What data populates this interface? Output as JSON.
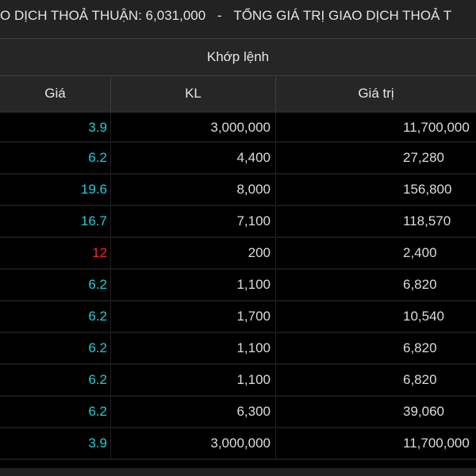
{
  "ticker": {
    "left": "O DỊCH THOẢ THUẬN: 6,031,000",
    "separator": "-",
    "right": "TỔNG GIÁ TRỊ GIAO DỊCH THOẢ T"
  },
  "table": {
    "group_header": "Khớp lệnh",
    "columns": [
      "Giá",
      "KL",
      "Giá trị"
    ],
    "rows": [
      {
        "price": "3.9",
        "qty": "3,000,000",
        "value": "11,700,000",
        "price_color": "#19cfd8"
      },
      {
        "price": "6.2",
        "qty": "4,400",
        "value": "27,280",
        "price_color": "#19cfd8"
      },
      {
        "price": "19.6",
        "qty": "8,000",
        "value": "156,800",
        "price_color": "#19cfd8"
      },
      {
        "price": "16.7",
        "qty": "7,100",
        "value": "118,570",
        "price_color": "#19cfd8"
      },
      {
        "price": "12",
        "qty": "200",
        "value": "2,400",
        "price_color": "#ff2323"
      },
      {
        "price": "6.2",
        "qty": "1,100",
        "value": "6,820",
        "price_color": "#19cfd8"
      },
      {
        "price": "6.2",
        "qty": "1,700",
        "value": "10,540",
        "price_color": "#19cfd8"
      },
      {
        "price": "6.2",
        "qty": "1,100",
        "value": "6,820",
        "price_color": "#19cfd8"
      },
      {
        "price": "6.2",
        "qty": "1,100",
        "value": "6,820",
        "price_color": "#19cfd8"
      },
      {
        "price": "6.2",
        "qty": "6,300",
        "value": "39,060",
        "price_color": "#19cfd8"
      },
      {
        "price": "3.9",
        "qty": "3,000,000",
        "value": "11,700,000",
        "price_color": "#19cfd8"
      }
    ]
  },
  "colors": {
    "background": "#000000",
    "header_background": "#262626",
    "ticker_background": "#222222",
    "price_up": "#19cfd8",
    "price_down": "#ff2323",
    "text": "#dcdcdc"
  }
}
